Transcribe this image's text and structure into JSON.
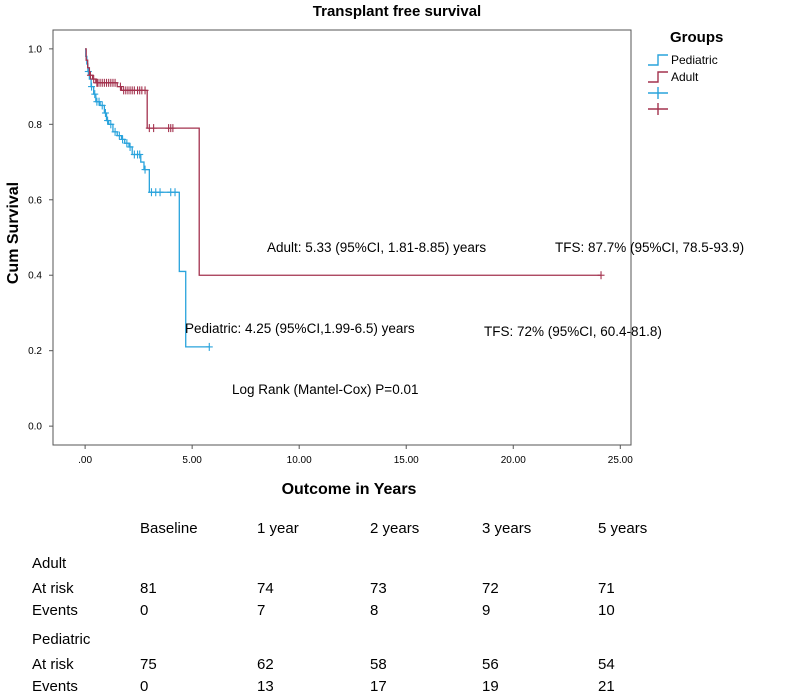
{
  "chart_data": {
    "type": "line",
    "subtype": "kaplan-meier",
    "title": "Transplant free survival",
    "xlabel": "Outcome in Years",
    "ylabel": "Cum Survival",
    "xlim": [
      -1.5,
      25.5
    ],
    "ylim": [
      -0.05,
      1.05
    ],
    "x_ticks": [
      0,
      5,
      10,
      15,
      20,
      25
    ],
    "x_tick_labels": [
      ".00",
      "5.00",
      "10.00",
      "15.00",
      "20.00",
      "25.00"
    ],
    "y_ticks": [
      0,
      0.2,
      0.4,
      0.6,
      0.8,
      1.0
    ],
    "y_tick_labels": [
      "0.0",
      "0.2",
      "0.4",
      "0.6",
      "0.8",
      "1.0"
    ],
    "legend": {
      "title": "Groups",
      "position": "top-right",
      "entries": [
        "Pediatric",
        "Adult",
        "",
        ""
      ]
    },
    "series": [
      {
        "name": "Pediatric",
        "color": "#29a3dc",
        "steps": [
          [
            0,
            1.0
          ],
          [
            0.03,
            0.98
          ],
          [
            0.08,
            0.96
          ],
          [
            0.13,
            0.94
          ],
          [
            0.2,
            0.92
          ],
          [
            0.28,
            0.9
          ],
          [
            0.4,
            0.88
          ],
          [
            0.5,
            0.86
          ],
          [
            0.7,
            0.85
          ],
          [
            0.9,
            0.83
          ],
          [
            1.0,
            0.81
          ],
          [
            1.1,
            0.8
          ],
          [
            1.3,
            0.78
          ],
          [
            1.5,
            0.77
          ],
          [
            1.7,
            0.76
          ],
          [
            1.85,
            0.75
          ],
          [
            2.05,
            0.74
          ],
          [
            2.2,
            0.72
          ],
          [
            2.6,
            0.7
          ],
          [
            2.75,
            0.68
          ],
          [
            3.0,
            0.62
          ],
          [
            4.1,
            0.62
          ],
          [
            4.4,
            0.41
          ],
          [
            4.7,
            0.21
          ],
          [
            5.8,
            0.21
          ]
        ],
        "censor_times": [
          0.15,
          0.3,
          0.45,
          0.55,
          0.65,
          0.8,
          0.95,
          1.05,
          1.2,
          1.4,
          1.6,
          1.75,
          1.95,
          2.1,
          2.3,
          2.45,
          2.55,
          2.8,
          3.1,
          3.3,
          3.5,
          4.0,
          4.2,
          5.8
        ],
        "median_label": "Pediatric: 4.25 (95%CI,1.99-6.5) years",
        "tfs_label": "TFS: 72% (95%CI, 60.4-81.8)"
      },
      {
        "name": "Adult",
        "color": "#a3324e",
        "steps": [
          [
            0,
            1.0
          ],
          [
            0.05,
            0.97
          ],
          [
            0.12,
            0.95
          ],
          [
            0.2,
            0.93
          ],
          [
            0.35,
            0.92
          ],
          [
            0.5,
            0.91
          ],
          [
            1.5,
            0.9
          ],
          [
            1.7,
            0.89
          ],
          [
            2.9,
            0.79
          ],
          [
            5.33,
            0.79
          ],
          [
            5.33,
            0.4
          ],
          [
            24.1,
            0.4
          ]
        ],
        "censor_times": [
          0.25,
          0.4,
          0.55,
          0.6,
          0.7,
          0.8,
          0.9,
          1.0,
          1.1,
          1.2,
          1.3,
          1.4,
          1.65,
          1.8,
          1.9,
          2.0,
          2.1,
          2.2,
          2.3,
          2.45,
          2.55,
          2.65,
          2.8,
          3.0,
          3.2,
          3.9,
          4.0,
          4.1,
          24.1
        ],
        "median_label": "Adult: 5.33 (95%CI, 1.81-8.85) years",
        "tfs_label": "TFS: 87.7% (95%CI, 78.5-93.9)"
      }
    ],
    "annotations": {
      "log_rank": "Log Rank (Mantel-Cox) P=0.01"
    }
  },
  "risk_table": {
    "columns": [
      "Baseline",
      "1 year",
      "2 years",
      "3 years",
      "5 years"
    ],
    "groups": [
      {
        "name": "Adult",
        "rows": [
          {
            "label": "At risk",
            "values": [
              "81",
              "74",
              "73",
              "72",
              "71"
            ]
          },
          {
            "label": "Events",
            "values": [
              "0",
              "7",
              "8",
              "9",
              "10"
            ]
          }
        ]
      },
      {
        "name": "Pediatric",
        "rows": [
          {
            "label": "At risk",
            "values": [
              "75",
              "62",
              "58",
              "56",
              "54"
            ]
          },
          {
            "label": "Events",
            "values": [
              "0",
              "13",
              "17",
              "19",
              "21"
            ]
          }
        ]
      }
    ]
  }
}
